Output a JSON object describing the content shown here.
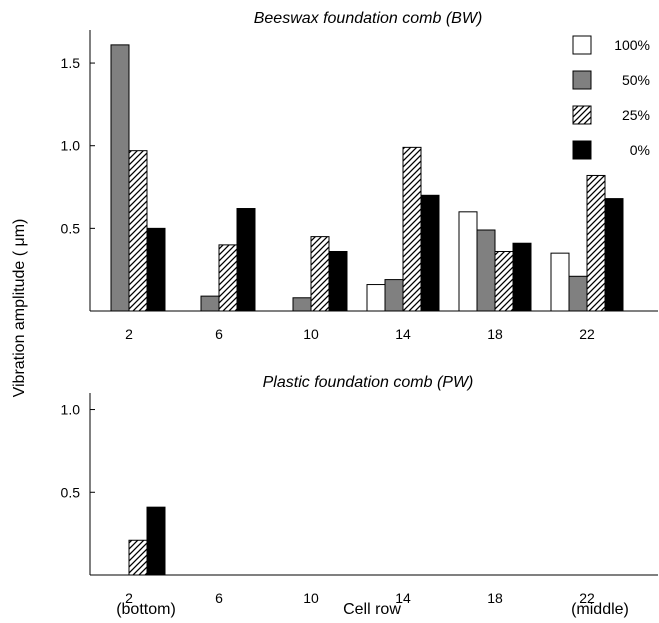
{
  "shared": {
    "ylabel": "Vibration amplitude ( μm)",
    "xlabel": "Cell row",
    "xlabel_left": "(bottom)",
    "xlabel_right": "(middle)",
    "legend": [
      {
        "name": "100%",
        "fill": "#ffffff",
        "pattern": "none"
      },
      {
        "name": "50%",
        "fill": "#808080",
        "pattern": "none"
      },
      {
        "name": "25%",
        "fill": "#ffffff",
        "pattern": "hatch"
      },
      {
        "name": "0%",
        "fill": "#000000",
        "pattern": "none"
      }
    ],
    "legend_position": "top-right"
  },
  "chart_data": [
    {
      "type": "bar",
      "title": "Beeswax foundation comb (BW)",
      "categories": [
        "2",
        "6",
        "10",
        "14",
        "18",
        "22"
      ],
      "ylim": [
        0,
        1.7
      ],
      "yticks": [
        "0.5",
        "1.0",
        "1.5"
      ],
      "grid": false,
      "series": [
        {
          "name": "100%",
          "values": [
            0,
            0,
            0,
            0.16,
            0.6,
            0.35
          ]
        },
        {
          "name": "50%",
          "values": [
            1.61,
            0.09,
            0.08,
            0.19,
            0.49,
            0.21
          ]
        },
        {
          "name": "25%",
          "values": [
            0.97,
            0.4,
            0.45,
            0.99,
            0.36,
            0.82
          ]
        },
        {
          "name": "0%",
          "values": [
            0.5,
            0.62,
            0.36,
            0.7,
            0.41,
            0.68
          ]
        }
      ]
    },
    {
      "type": "bar",
      "title": "Plastic foundation comb (PW)",
      "categories": [
        "2",
        "6",
        "10",
        "14",
        "18",
        "22"
      ],
      "ylim": [
        0,
        1.1
      ],
      "yticks": [
        "0.5",
        "1.0"
      ],
      "grid": false,
      "series": [
        {
          "name": "100%",
          "values": [
            0,
            0,
            0,
            0,
            0,
            0
          ]
        },
        {
          "name": "50%",
          "values": [
            0,
            0,
            0,
            0,
            0,
            0
          ]
        },
        {
          "name": "25%",
          "values": [
            0.21,
            0,
            0,
            0,
            0,
            0
          ]
        },
        {
          "name": "0%",
          "values": [
            0.41,
            0,
            0,
            0,
            0,
            0
          ]
        }
      ]
    }
  ]
}
